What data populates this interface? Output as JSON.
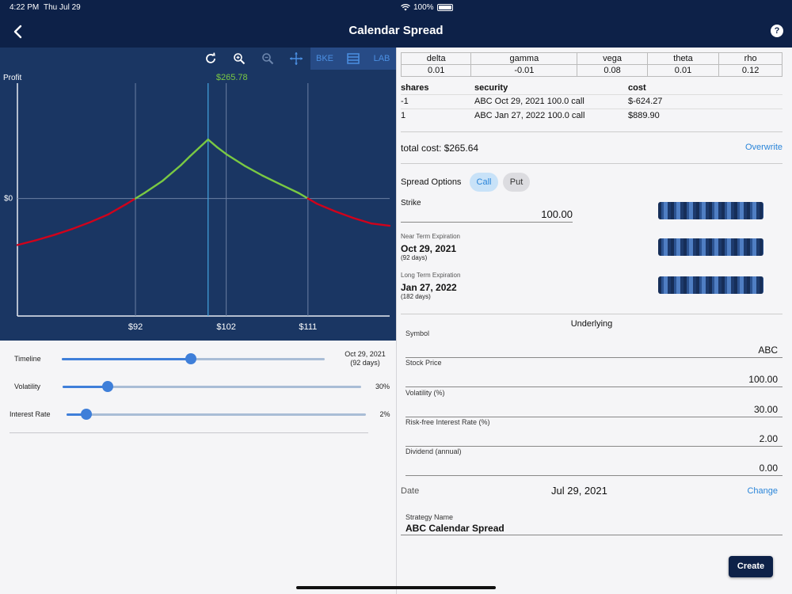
{
  "status_bar": {
    "time": "4:22 PM",
    "date": "Thu Jul 29",
    "battery": "100%"
  },
  "header": {
    "title": "Calendar Spread",
    "help": "?"
  },
  "toolbar": {
    "bke_label": "BKE",
    "lab_label": "LAB"
  },
  "chart_data": {
    "type": "line",
    "ylabel": "Profit",
    "peak_label": "$265.78",
    "zero_label": "$0",
    "x_ticks": [
      "$92",
      "$102",
      "$111"
    ],
    "x_tick_values": [
      92,
      102,
      111
    ],
    "current_price": 100,
    "xlim": [
      79,
      120
    ],
    "ylim": [
      -530,
      520
    ],
    "colors": {
      "profit": "#7ac943",
      "loss": "#d0021b",
      "cursor": "#45a5e0",
      "grid": "#6b7fa3"
    },
    "series": [
      {
        "x": [
          79,
          81,
          83,
          85,
          87,
          89,
          91,
          92,
          93,
          95,
          97,
          98,
          99,
          100,
          101,
          102,
          104,
          106,
          108,
          110,
          111,
          112,
          114,
          116,
          118,
          120
        ],
        "y": [
          -210,
          -189,
          -165,
          -138,
          -107,
          -72,
          -25,
          0,
          25,
          80,
          150,
          190,
          228,
          266,
          231,
          200,
          148,
          103,
          63,
          24,
          0,
          -24,
          -58,
          -88,
          -113,
          -123
        ]
      }
    ]
  },
  "sliders": [
    {
      "label": "Timeline",
      "value": "Oct 29, 2021\n(92 days)",
      "fraction": 0.49
    },
    {
      "label": "Volatility",
      "value": "30%",
      "fraction": 0.15
    },
    {
      "label": "Interest Rate",
      "value": "2%",
      "fraction": 0.065
    }
  ],
  "greeks": {
    "headers": [
      "delta",
      "gamma",
      "vega",
      "theta",
      "rho"
    ],
    "values": [
      "0.01",
      "-0.01",
      "0.08",
      "0.01",
      "0.12"
    ]
  },
  "positions": {
    "headers": [
      "shares",
      "security",
      "cost"
    ],
    "rows": [
      [
        "-1",
        "ABC Oct 29, 2021 100.0 call",
        "$-624.27"
      ],
      [
        "1",
        "ABC Jan 27, 2022 100.0 call",
        "$889.90"
      ]
    ]
  },
  "total_cost": "total cost: $265.64",
  "overwrite_label": "Overwrite",
  "spread_options": {
    "label": "Spread Options",
    "call": "Call",
    "put": "Put",
    "selected": "Call"
  },
  "strike": {
    "label": "Strike",
    "value": "100.00"
  },
  "near_term": {
    "label": "Near Term Expiration",
    "date": "Oct 29, 2021",
    "days": "(92 days)"
  },
  "long_term": {
    "label": "Long Term Expiration",
    "date": "Jan 27, 2022",
    "days": "(182 days)"
  },
  "underlying": {
    "title": "Underlying",
    "fields": [
      {
        "label": "Symbol",
        "value": "ABC"
      },
      {
        "label": "Stock Price",
        "value": "100.00"
      },
      {
        "label": "Volatility (%)",
        "value": "30.00"
      },
      {
        "label": "Risk-free Interest Rate (%)",
        "value": "2.00"
      },
      {
        "label": "Dividend (annual)",
        "value": "0.00"
      }
    ]
  },
  "date": {
    "label": "Date",
    "value": "Jul 29, 2021",
    "change_label": "Change"
  },
  "strategy": {
    "label": "Strategy Name",
    "value": "ABC Calendar Spread"
  },
  "create_label": "Create"
}
